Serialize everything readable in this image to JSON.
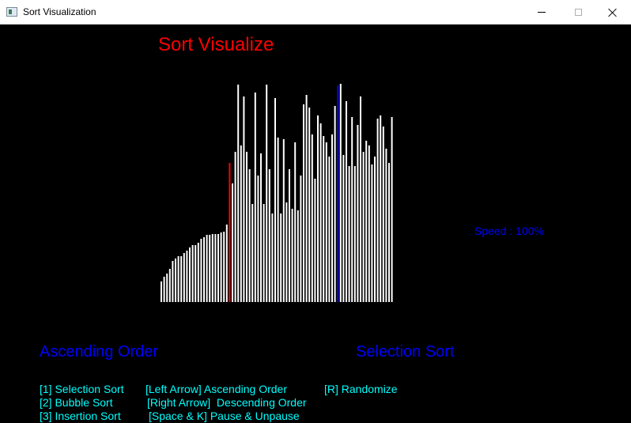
{
  "window": {
    "title": "Sort Visualization",
    "icons": {
      "app": "window-app-icon",
      "minimize": "minimize-icon",
      "maximize": "maximize-icon",
      "close": "close-icon"
    }
  },
  "heading": "Sort Visualize",
  "speed_label": "Speed : 100%",
  "order_label": "Ascending Order",
  "algorithm_label": "Selection Sort",
  "controls": [
    "[1] Selection Sort",
    "[Left Arrow] Ascending Order",
    "[R] Randomize",
    "[2] Bubble Sort",
    "[Right Arrow]  Descending Order",
    "[3] Insertion Sort",
    "[Space & K] Pause & Unpause"
  ],
  "colors": {
    "heading": "#ff0000",
    "info": "#0000ff",
    "controls": "#00ffff",
    "bar": "#ffffff",
    "bar_highlight_red": "#ff0000",
    "bar_highlight_blue": "#0000ff",
    "background": "#000000"
  },
  "chart_data": {
    "type": "bar",
    "values": [
      26,
      32,
      36,
      42,
      52,
      55,
      58,
      58,
      62,
      65,
      69,
      72,
      72,
      75,
      80,
      82,
      85,
      85,
      86,
      86,
      86,
      88,
      89,
      98,
      176,
      150,
      190,
      275,
      198,
      260,
      190,
      168,
      124,
      265,
      160,
      188,
      124,
      275,
      168,
      112,
      258,
      208,
      112,
      206,
      126,
      168,
      118,
      202,
      116,
      160,
      250,
      262,
      246,
      212,
      156,
      236,
      226,
      210,
      202,
      184,
      212,
      248,
      274,
      276,
      186,
      254,
      172,
      234,
      172,
      224,
      260,
      190,
      204,
      198,
      174,
      184,
      232,
      236,
      222,
      194,
      176,
      234
    ],
    "highlight_red_index": 24,
    "highlight_blue_index": 62
  }
}
